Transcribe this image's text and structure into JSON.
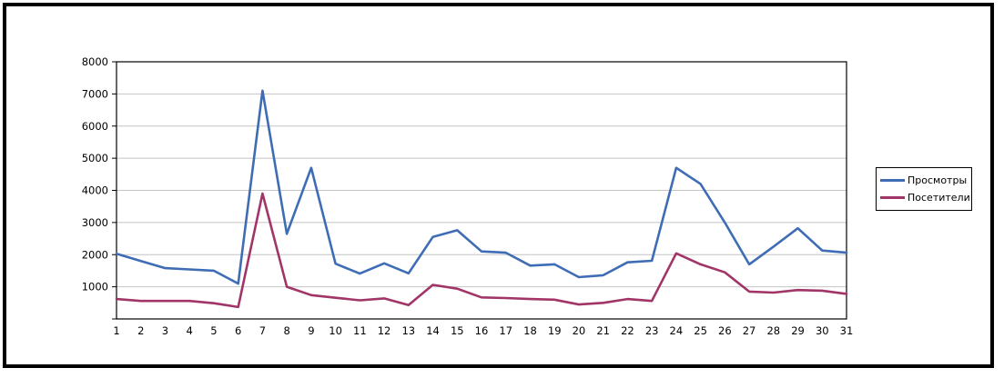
{
  "chart_data": {
    "type": "line",
    "x": [
      1,
      2,
      3,
      4,
      5,
      6,
      7,
      8,
      9,
      10,
      11,
      12,
      13,
      14,
      15,
      16,
      17,
      18,
      19,
      20,
      21,
      22,
      23,
      24,
      25,
      26,
      27,
      28,
      29,
      30,
      31
    ],
    "series": [
      {
        "name": "Просмотры",
        "color": "#3E6DB5",
        "values": [
          2030,
          1800,
          1580,
          1540,
          1500,
          1100,
          7100,
          2650,
          4700,
          1720,
          1410,
          1730,
          1420,
          2550,
          2760,
          2100,
          2060,
          1660,
          1700,
          1300,
          1360,
          1760,
          1810,
          4700,
          4200,
          3000,
          1700,
          2250,
          2820,
          2130,
          2060
        ]
      },
      {
        "name": "Посетители",
        "color": "#A23568",
        "values": [
          620,
          560,
          560,
          560,
          490,
          370,
          3900,
          1000,
          740,
          660,
          580,
          640,
          430,
          1060,
          940,
          670,
          650,
          620,
          600,
          450,
          500,
          620,
          560,
          2040,
          1700,
          1450,
          850,
          820,
          900,
          880,
          780
        ]
      }
    ],
    "title": "",
    "xlabel": "",
    "ylabel": "",
    "ylim": [
      0,
      8000
    ],
    "ytick_step": 1000,
    "y_tick_labels": [
      "1000",
      "2000",
      "3000",
      "4000",
      "5000",
      "6000",
      "7000",
      "8000"
    ],
    "x_tick_labels": [
      "1",
      "2",
      "3",
      "4",
      "5",
      "6",
      "7",
      "8",
      "9",
      "10",
      "11",
      "12",
      "13",
      "14",
      "15",
      "16",
      "17",
      "18",
      "19",
      "20",
      "21",
      "22",
      "23",
      "24",
      "25",
      "26",
      "27",
      "28",
      "29",
      "30",
      "31"
    ],
    "grid": true,
    "legend_position": "right",
    "colors": {
      "gridline": "#C4C4C4",
      "axis": "#000000",
      "text": "#000000",
      "plot_background": "#FFFFFF"
    }
  }
}
